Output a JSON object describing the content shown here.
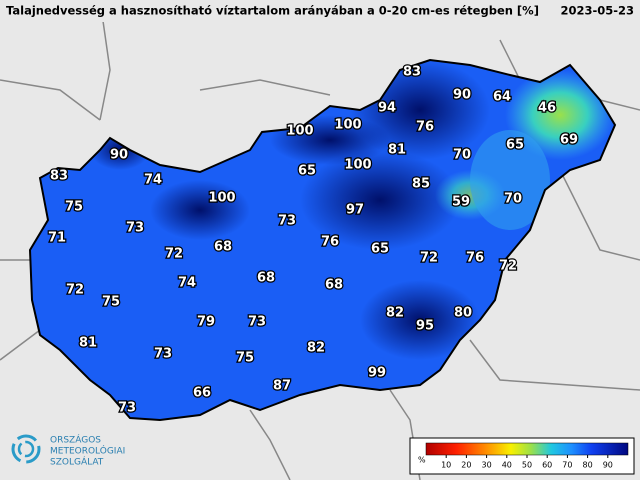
{
  "header": {
    "title": "Talajnedvesség a hasznosítható víztartalom arányában a 0-20 cm-es rétegben [%]",
    "date": "2023-05-23"
  },
  "stations": [
    83,
    90,
    64,
    46,
    94,
    100,
    100,
    76,
    69,
    65,
    70,
    81,
    90,
    100,
    65,
    83,
    74,
    85,
    59,
    70,
    100,
    97,
    75,
    73,
    73,
    71,
    76,
    68,
    65,
    72,
    72,
    76,
    72,
    74,
    68,
    68,
    72,
    75,
    82,
    80,
    95,
    79,
    73,
    81,
    73,
    82,
    75,
    99,
    87,
    66,
    73
  ],
  "legend": {
    "unit": "%",
    "ticks": [
      10,
      20,
      30,
      40,
      50,
      60,
      70,
      80,
      90
    ]
  },
  "logo": {
    "line1": "ORSZÁGOS",
    "line2": "METEOROLÓGIAI",
    "line3": "SZOLGÁLAT"
  }
}
